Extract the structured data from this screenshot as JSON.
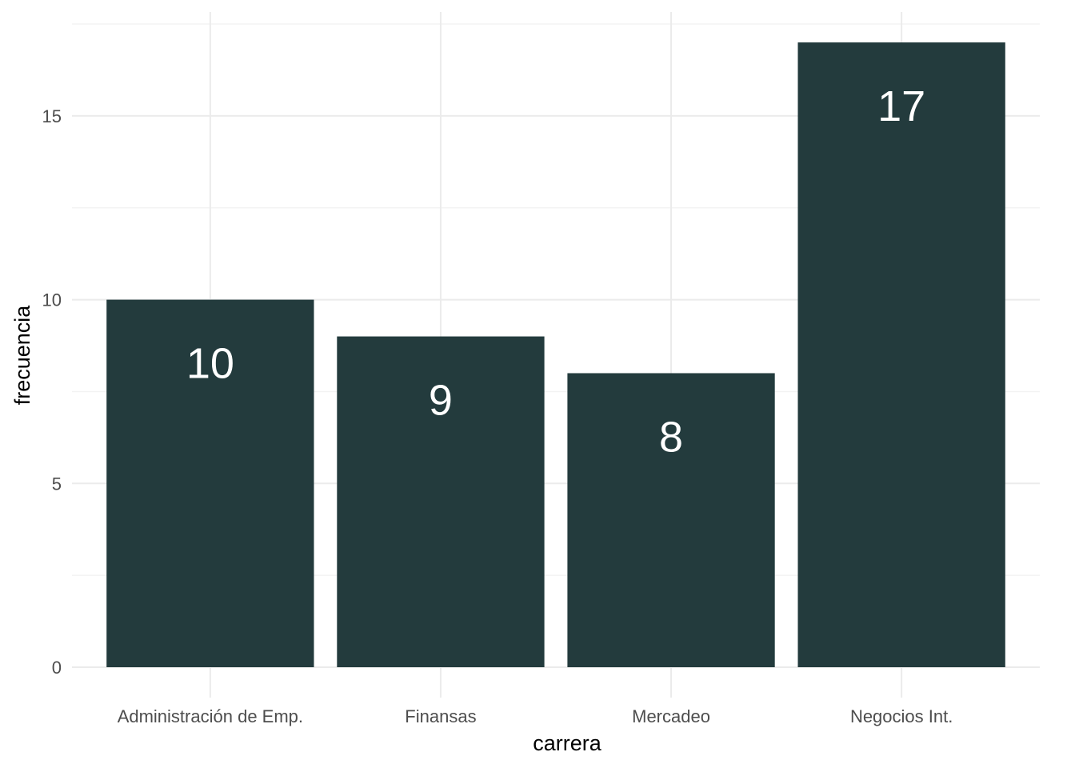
{
  "chart_data": {
    "type": "bar",
    "categories": [
      "Administración de Emp.",
      "Finansas",
      "Mercadeo",
      "Negocios Int."
    ],
    "values": [
      10,
      9,
      8,
      17
    ],
    "data_labels": [
      "10",
      "9",
      "8",
      "17"
    ],
    "title": "",
    "xlabel": "carrera",
    "ylabel": "frecuencia",
    "ylim": [
      0,
      17.85
    ],
    "yticks": [
      0,
      5,
      10,
      15
    ],
    "ytick_labels": [
      "0",
      "5",
      "10",
      "15"
    ],
    "grid": true,
    "bar_color": "#233b3d",
    "label_color": "#ffffff",
    "background": "#ffffff"
  }
}
